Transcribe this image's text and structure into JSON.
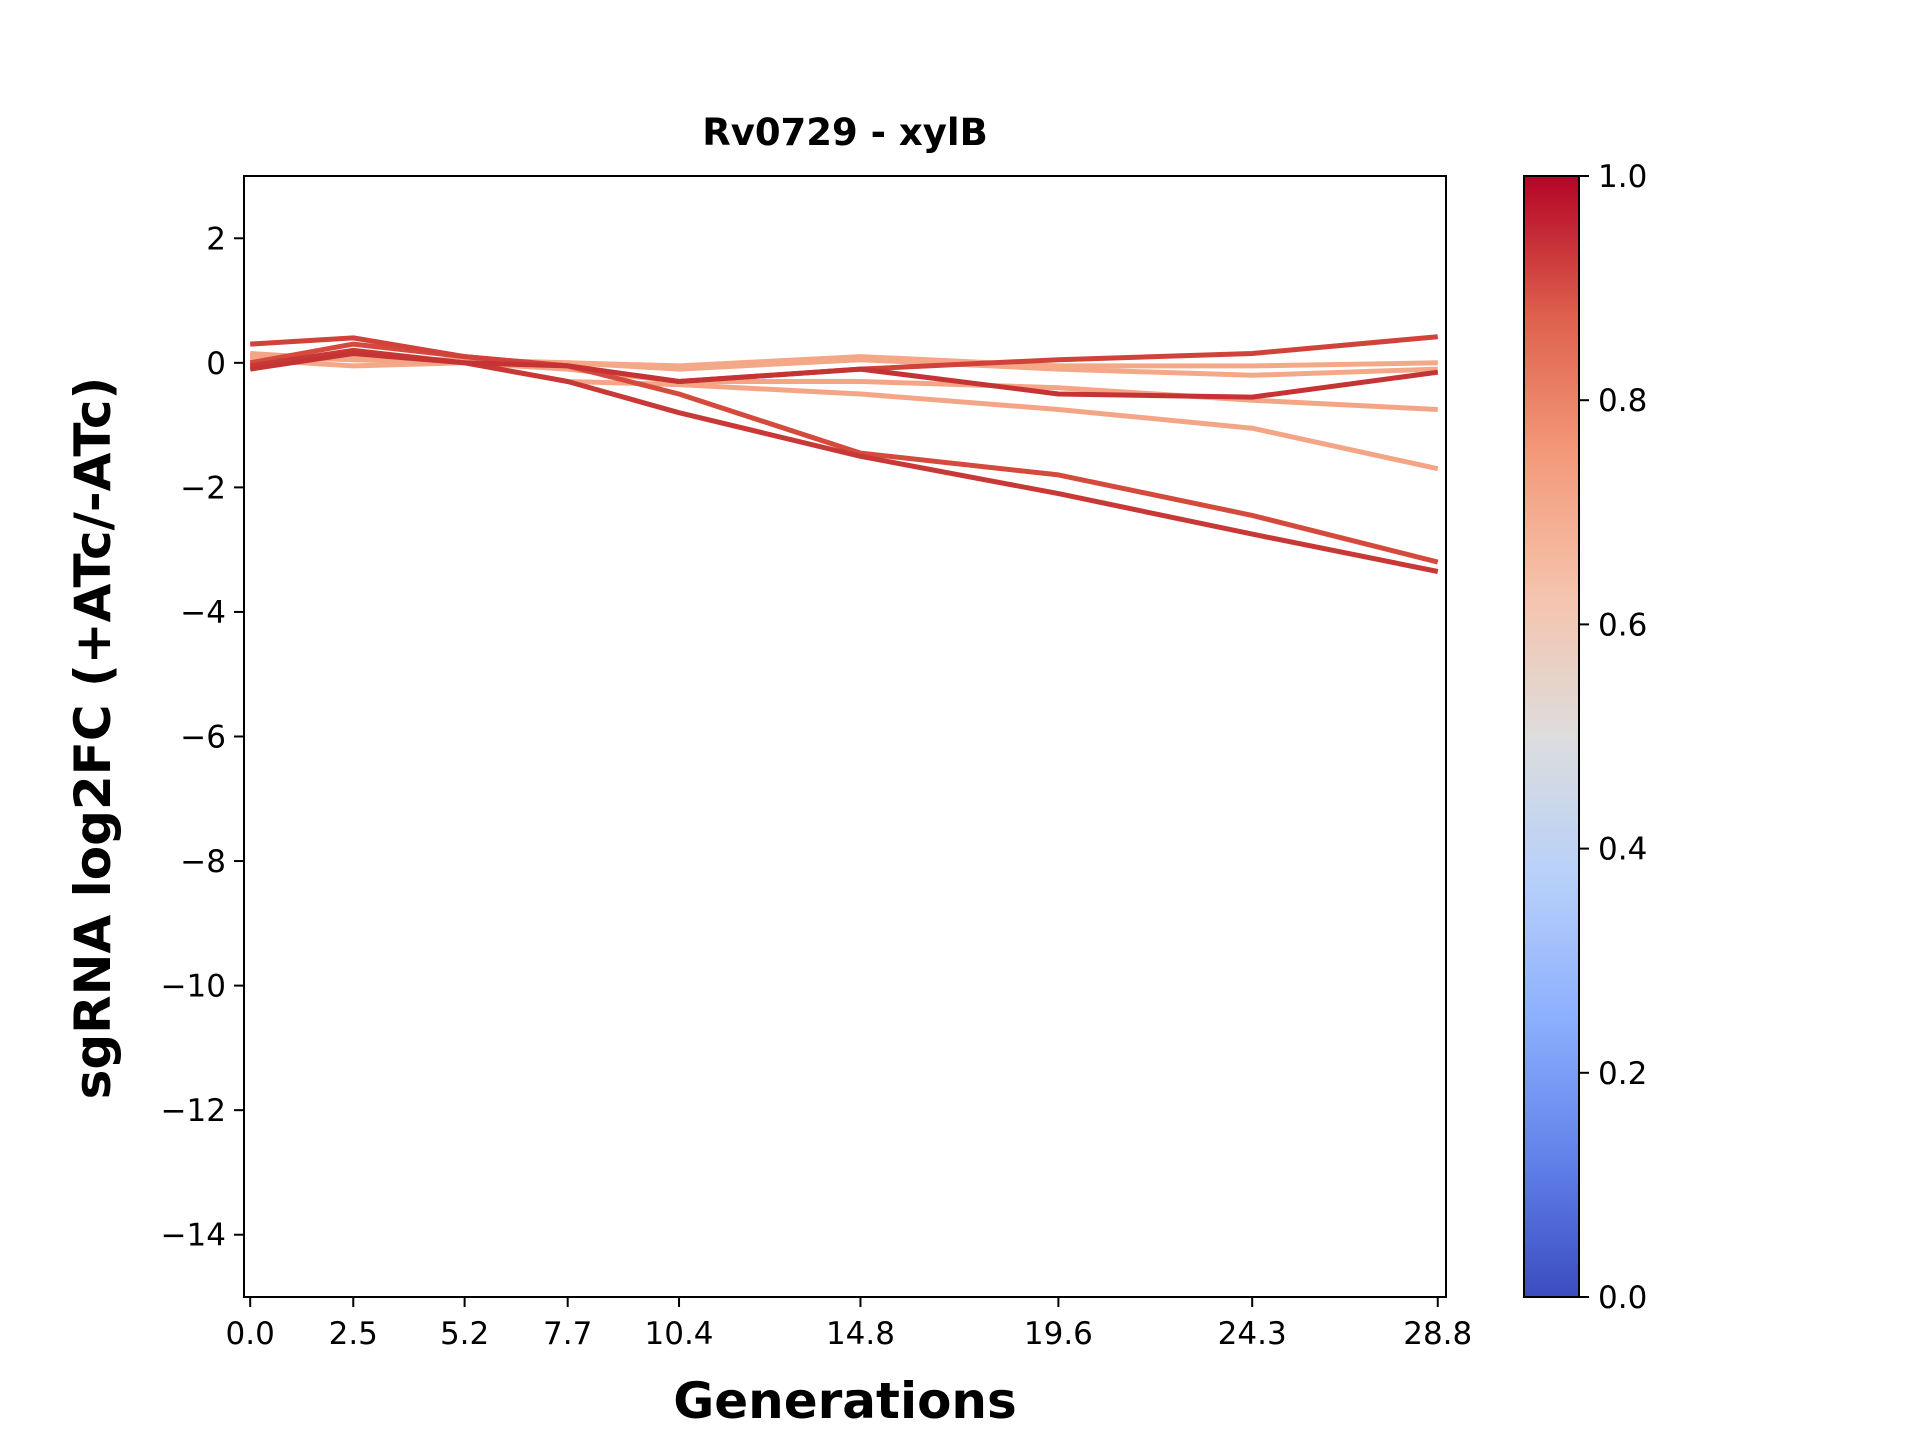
{
  "chart_data": {
    "type": "line",
    "title": "Rv0729 - xylB",
    "xlabel": "Generations",
    "ylabel": "sgRNA log2FC (+ATc/-ATc)",
    "xlim": [
      -0.15,
      29.0
    ],
    "ylim": [
      -15,
      3
    ],
    "x": [
      0.0,
      2.5,
      5.2,
      7.7,
      10.4,
      14.8,
      19.6,
      24.3,
      28.8
    ],
    "x_tick_labels": [
      "0.0",
      "2.5",
      "5.2",
      "7.7",
      "10.4",
      "14.8",
      "19.6",
      "24.3",
      "28.8"
    ],
    "y_ticks": [
      2,
      0,
      -2,
      -4,
      -6,
      -8,
      -10,
      -12,
      -14
    ],
    "y_tick_labels": [
      "2",
      "0",
      "−2",
      "−4",
      "−6",
      "−8",
      "−10",
      "−12",
      "−14"
    ],
    "grid": false,
    "colormap": "coolwarm",
    "colorbar": {
      "range": [
        0.0,
        1.0
      ],
      "tick_labels": [
        "0.0",
        "0.2",
        "0.4",
        "0.6",
        "0.8",
        "1.0"
      ],
      "stops": [
        "#3b4cc0",
        "#6282ea",
        "#8db0fe",
        "#b8d0f9",
        "#dddddd",
        "#f5c4ad",
        "#f49a7b",
        "#de604d",
        "#b40426"
      ]
    },
    "series": [
      {
        "color_value": 0.72,
        "color": "#f5a888",
        "values": [
          0.05,
          -0.05,
          0.0,
          0.0,
          -0.1,
          0.05,
          -0.1,
          -0.2,
          -0.1
        ]
      },
      {
        "color_value": 0.72,
        "color": "#f5a888",
        "values": [
          0.1,
          0.05,
          0.05,
          0.0,
          -0.05,
          0.1,
          -0.05,
          -0.05,
          0.0
        ]
      },
      {
        "color_value": 0.72,
        "color": "#f4a586",
        "values": [
          0.1,
          0.1,
          0.0,
          -0.1,
          -0.3,
          -0.3,
          -0.4,
          -0.6,
          -0.75
        ]
      },
      {
        "color_value": 0.72,
        "color": "#f4a586",
        "values": [
          0.15,
          0.05,
          0.0,
          -0.3,
          -0.35,
          -0.5,
          -0.75,
          -1.05,
          -1.7
        ]
      },
      {
        "color_value": 0.9,
        "color": "#d44a3c",
        "values": [
          0.0,
          0.3,
          0.1,
          -0.05,
          -0.5,
          -1.45,
          -1.8,
          -2.45,
          -3.2
        ]
      },
      {
        "color_value": 0.93,
        "color": "#c83836",
        "values": [
          -0.05,
          0.2,
          0.0,
          -0.3,
          -0.8,
          -1.5,
          -2.1,
          -2.75,
          -3.35
        ]
      },
      {
        "color_value": 0.9,
        "color": "#d0423a",
        "values": [
          0.3,
          0.4,
          0.1,
          -0.05,
          -0.3,
          -0.1,
          0.05,
          0.15,
          0.42
        ]
      },
      {
        "color_value": 0.93,
        "color": "#c53334",
        "values": [
          -0.1,
          0.15,
          0.0,
          -0.05,
          -0.3,
          -0.1,
          -0.5,
          -0.55,
          -0.15
        ]
      }
    ]
  }
}
